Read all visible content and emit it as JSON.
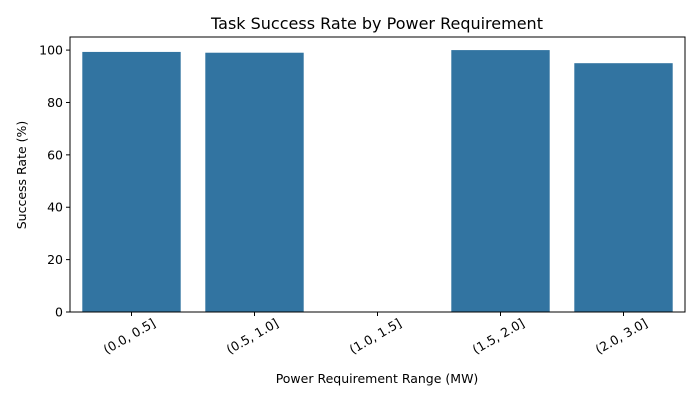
{
  "chart_data": {
    "type": "bar",
    "title": "Task Success Rate by Power Requirement",
    "xlabel": "Power Requirement Range (MW)",
    "ylabel": "Success Rate (%)",
    "categories": [
      "(0.0, 0.5]",
      "(0.5, 1.0]",
      "(1.0, 1.5]",
      "(1.5, 2.0]",
      "(2.0, 3.0]"
    ],
    "values": [
      99.3,
      99.0,
      0,
      100.0,
      95.0
    ],
    "ylim": [
      0,
      105
    ],
    "yticks": [
      0,
      20,
      40,
      60,
      80,
      100
    ],
    "bar_color": "#3274a1",
    "grid": false,
    "legend": "none"
  }
}
